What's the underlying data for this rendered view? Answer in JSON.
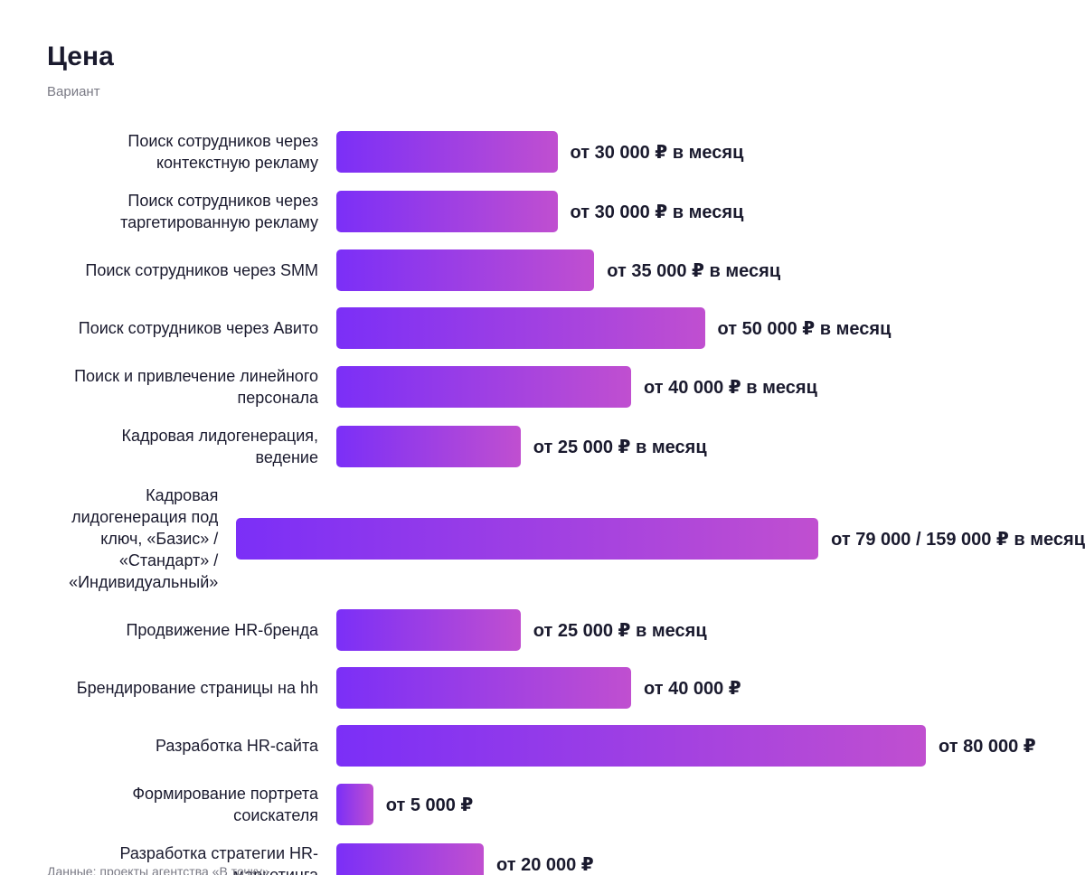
{
  "chart_data": {
    "type": "bar",
    "orientation": "horizontal",
    "title": "Цена",
    "subtitle": "Вариант",
    "categories": [
      "Поиск сотрудников через контекстную рекламу",
      "Поиск сотрудников через таргетированную рекламу",
      "Поиск сотрудников через SMM",
      "Поиск сотрудников через Авито",
      "Поиск и привлечение линейного персонала",
      "Кадровая лидогенерация, ведение",
      "Кадровая лидогенерация под ключ, «Базис» / «Стандарт» / «Индивидуальный»",
      "Продвижение HR-бренда",
      "Брендирование страницы на hh",
      "Разработка HR-сайта",
      "Формирование портрета соискателя",
      "Разработка стратегии HR-маркетинга"
    ],
    "values": [
      30000,
      30000,
      35000,
      50000,
      40000,
      25000,
      79000,
      25000,
      40000,
      80000,
      5000,
      20000
    ],
    "value_labels": [
      "от 30 000 ₽ в месяц",
      "от 30 000 ₽ в месяц",
      "от 35 000 ₽ в месяц",
      "от 50 000 ₽ в месяц",
      "от 40 000 ₽ в месяц",
      "от 25 000 ₽ в месяц",
      "от 79 000 / 159 000 ₽ в месяц",
      "от 25 000 ₽ в месяц",
      "от 40 000 ₽",
      "от 80 000 ₽",
      "от 5 000 ₽",
      "от 20 000 ₽"
    ],
    "color": [
      "#7b2ff7",
      "#c04fd0"
    ],
    "xlim": [
      0,
      80000
    ],
    "source": "Данные: проекты агентства «В точку»"
  }
}
